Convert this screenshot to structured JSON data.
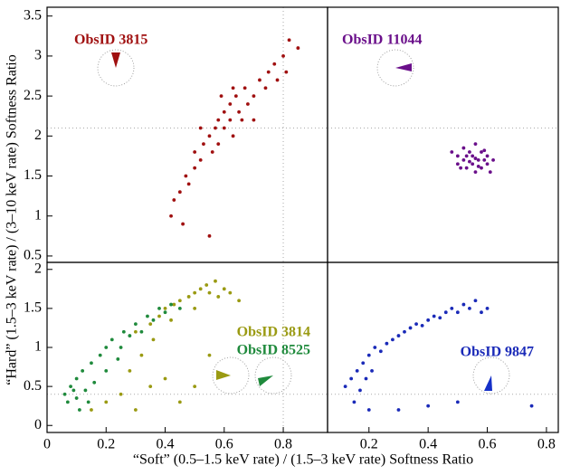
{
  "chart_data": [
    {
      "type": "scatter",
      "ylabel": "“Hard” (1.5–3 keV rate) / (3–10 keV rate) Softness Ratio",
      "xlim": [
        0,
        0.95
      ],
      "ylim": [
        0.42,
        3.61
      ],
      "yticks": [
        0.5,
        1,
        1.5,
        2,
        2.5,
        3,
        3.5
      ],
      "ref_y": 2.1,
      "ref_x": 0.8,
      "series": [
        {
          "name": "ObsID 3815",
          "color": "#a01010",
          "x": [
            0.45,
            0.47,
            0.5,
            0.5,
            0.52,
            0.53,
            0.55,
            0.56,
            0.57,
            0.58,
            0.6,
            0.6,
            0.62,
            0.62,
            0.63,
            0.64,
            0.65,
            0.66,
            0.67,
            0.68,
            0.7,
            0.72,
            0.74,
            0.75,
            0.77,
            0.78,
            0.8,
            0.81,
            0.82,
            0.85,
            0.43,
            0.42,
            0.46,
            0.55,
            0.48,
            0.52,
            0.58,
            0.59,
            0.63,
            0.7
          ],
          "values": [
            1.3,
            1.5,
            1.6,
            1.8,
            1.7,
            1.9,
            2.0,
            1.8,
            2.1,
            2.2,
            2.1,
            2.3,
            2.2,
            2.4,
            2.0,
            2.5,
            2.3,
            2.2,
            2.6,
            2.4,
            2.5,
            2.7,
            2.6,
            2.8,
            2.9,
            2.7,
            3.0,
            2.8,
            3.2,
            3.1,
            1.2,
            1.0,
            0.9,
            0.75,
            1.4,
            2.1,
            1.9,
            2.5,
            2.6,
            2.2
          ]
        }
      ]
    },
    {
      "type": "scatter",
      "xlim": [
        0.06,
        0.84
      ],
      "ylim": [
        0.42,
        3.61
      ],
      "ref_y": 2.1,
      "series": [
        {
          "name": "ObsID 11044",
          "color": "#6a0f8a",
          "x": [
            0.48,
            0.5,
            0.5,
            0.52,
            0.52,
            0.53,
            0.54,
            0.55,
            0.55,
            0.56,
            0.56,
            0.57,
            0.58,
            0.58,
            0.59,
            0.6,
            0.6,
            0.61,
            0.53,
            0.57,
            0.54,
            0.59,
            0.51,
            0.62,
            0.56
          ],
          "values": [
            1.8,
            1.75,
            1.65,
            1.85,
            1.7,
            1.6,
            1.8,
            1.75,
            1.65,
            1.9,
            1.55,
            1.7,
            1.8,
            1.6,
            1.7,
            1.65,
            1.75,
            1.55,
            1.75,
            1.62,
            1.68,
            1.82,
            1.6,
            1.7,
            1.72
          ]
        }
      ]
    },
    {
      "type": "scatter",
      "xlabel": "“Soft” (0.5–1.5 keV rate) / (1.5–3 keV rate) Softness Ratio",
      "xlim": [
        0,
        0.95
      ],
      "ylim": [
        -0.09,
        2.09
      ],
      "xticks": [
        0,
        0.2,
        0.4,
        0.6,
        0.8
      ],
      "yticks": [
        0,
        0.5,
        1,
        1.5,
        2
      ],
      "ref_y": 0.4,
      "ref_x": 0.8,
      "series": [
        {
          "name": "ObsID 3814",
          "color": "#9a9a12",
          "x": [
            0.3,
            0.35,
            0.38,
            0.4,
            0.43,
            0.45,
            0.48,
            0.5,
            0.52,
            0.54,
            0.55,
            0.57,
            0.58,
            0.6,
            0.62,
            0.65,
            0.5,
            0.42,
            0.2,
            0.25,
            0.3,
            0.35,
            0.4,
            0.15,
            0.45,
            0.5,
            0.28,
            0.32,
            0.36,
            0.55
          ],
          "values": [
            1.2,
            1.3,
            1.4,
            1.5,
            1.55,
            1.6,
            1.65,
            1.7,
            1.75,
            1.8,
            1.7,
            1.85,
            1.65,
            1.75,
            1.7,
            1.6,
            1.5,
            1.35,
            0.3,
            0.4,
            0.2,
            0.5,
            0.6,
            0.2,
            0.3,
            0.5,
            0.7,
            0.9,
            1.1,
            0.9
          ]
        },
        {
          "name": "ObsID 8525",
          "color": "#1f8a3c",
          "x": [
            0.06,
            0.08,
            0.1,
            0.1,
            0.12,
            0.13,
            0.15,
            0.16,
            0.18,
            0.2,
            0.2,
            0.22,
            0.25,
            0.26,
            0.28,
            0.3,
            0.32,
            0.34,
            0.36,
            0.38,
            0.4,
            0.42,
            0.45,
            0.07,
            0.11,
            0.14,
            0.09,
            0.24
          ],
          "values": [
            0.4,
            0.5,
            0.35,
            0.6,
            0.7,
            0.45,
            0.8,
            0.55,
            0.9,
            1.0,
            0.7,
            1.1,
            1.0,
            1.2,
            1.15,
            1.3,
            1.2,
            1.4,
            1.35,
            1.5,
            1.45,
            1.55,
            1.5,
            0.3,
            0.2,
            0.3,
            0.45,
            0.85
          ]
        }
      ]
    },
    {
      "type": "scatter",
      "xlim": [
        0.06,
        0.84
      ],
      "ylim": [
        -0.09,
        2.09
      ],
      "xticks": [
        0.2,
        0.4,
        0.6,
        0.8
      ],
      "ref_y": 0.4,
      "series": [
        {
          "name": "ObsID 9847",
          "color": "#1a2ab8",
          "x": [
            0.12,
            0.14,
            0.15,
            0.16,
            0.17,
            0.18,
            0.19,
            0.2,
            0.21,
            0.22,
            0.24,
            0.26,
            0.28,
            0.3,
            0.32,
            0.34,
            0.36,
            0.38,
            0.4,
            0.42,
            0.44,
            0.46,
            0.48,
            0.5,
            0.52,
            0.54,
            0.56,
            0.58,
            0.6,
            0.3,
            0.4,
            0.5,
            0.75,
            0.2
          ],
          "values": [
            0.5,
            0.6,
            0.3,
            0.7,
            0.45,
            0.8,
            0.6,
            0.9,
            0.7,
            1.0,
            0.95,
            1.05,
            1.1,
            1.15,
            1.2,
            1.25,
            1.3,
            1.28,
            1.35,
            1.4,
            1.38,
            1.45,
            1.5,
            1.45,
            1.55,
            1.5,
            1.6,
            1.45,
            1.5,
            0.2,
            0.25,
            0.3,
            0.25,
            0.2
          ]
        }
      ]
    }
  ]
}
